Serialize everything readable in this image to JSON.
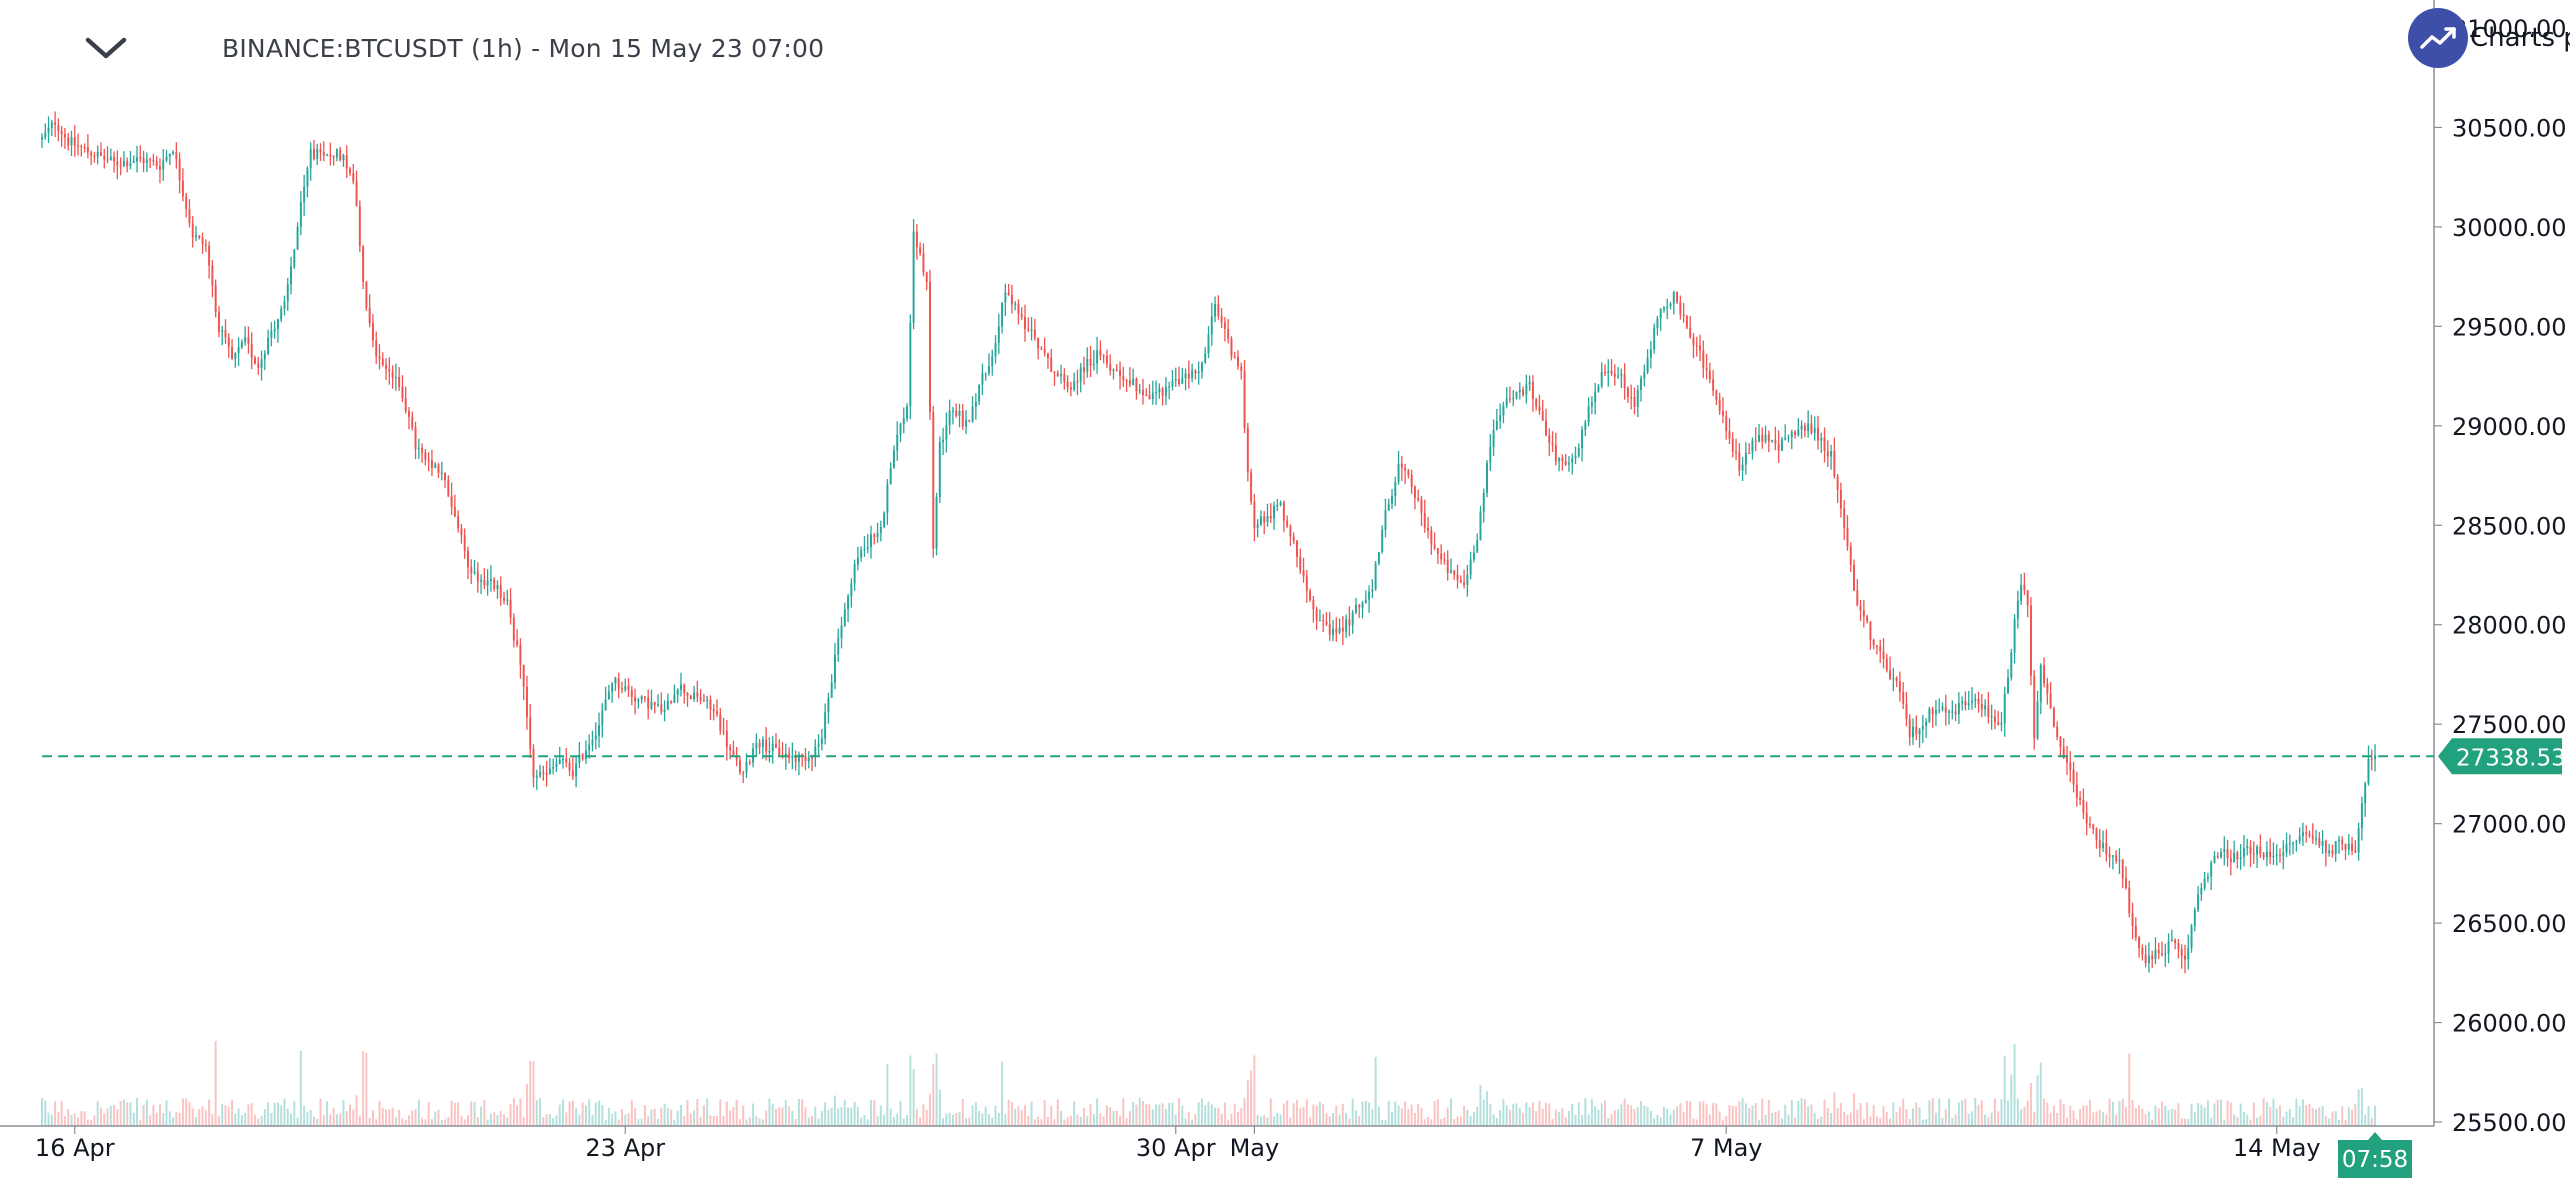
{
  "header": {
    "title": "BINANCE:BTCUSDT (1h) - Mon 15 May 23 07:00",
    "menu_icon": "chevron-down-icon",
    "brand_text": "Charts p",
    "brand_icon": "trend-up-icon"
  },
  "colors": {
    "up": "#26a69a",
    "down": "#ef5350",
    "last_price": "#22a17e",
    "brand": "#3d4fa8"
  },
  "chart_data": {
    "type": "candlestick",
    "symbol": "BINANCE:BTCUSDT",
    "interval": "1h",
    "y_axis": {
      "ticks": [
        "31000.00",
        "30500.00",
        "30000.00",
        "29500.00",
        "29000.00",
        "28500.00",
        "28000.00",
        "27500.00",
        "27000.00",
        "26500.00",
        "26000.00",
        "25500.00"
      ],
      "tick_values": [
        31000,
        30500,
        30000,
        29500,
        29000,
        28500,
        28000,
        27500,
        27000,
        26500,
        26000,
        25500
      ],
      "range": [
        25480,
        31040
      ],
      "position": "right"
    },
    "x_axis": {
      "ticks": [
        "16 Apr",
        "23 Apr",
        "30 Apr",
        "May",
        "7 May",
        "14 May"
      ],
      "tick_hours": [
        20,
        188,
        356,
        380,
        524,
        692
      ],
      "range_hours": [
        10,
        740
      ]
    },
    "last_price": {
      "value": 27338.53,
      "label": "27338.53"
    },
    "time_badge": "07:58",
    "price_path": [
      [
        10,
        30440
      ],
      [
        14,
        30530
      ],
      [
        18,
        30430
      ],
      [
        24,
        30380
      ],
      [
        32,
        30320
      ],
      [
        40,
        30340
      ],
      [
        46,
        30310
      ],
      [
        50,
        30400
      ],
      [
        52,
        30250
      ],
      [
        56,
        29960
      ],
      [
        60,
        29900
      ],
      [
        64,
        29500
      ],
      [
        68,
        29330
      ],
      [
        72,
        29420
      ],
      [
        76,
        29300
      ],
      [
        80,
        29480
      ],
      [
        84,
        29600
      ],
      [
        88,
        30000
      ],
      [
        92,
        30380
      ],
      [
        96,
        30340
      ],
      [
        100,
        30380
      ],
      [
        104,
        30300
      ],
      [
        106,
        30120
      ],
      [
        108,
        29700
      ],
      [
        112,
        29350
      ],
      [
        116,
        29280
      ],
      [
        120,
        29160
      ],
      [
        124,
        28900
      ],
      [
        128,
        28800
      ],
      [
        132,
        28760
      ],
      [
        136,
        28550
      ],
      [
        140,
        28300
      ],
      [
        144,
        28220
      ],
      [
        148,
        28200
      ],
      [
        152,
        28100
      ],
      [
        156,
        27800
      ],
      [
        160,
        27250
      ],
      [
        164,
        27240
      ],
      [
        168,
        27320
      ],
      [
        172,
        27260
      ],
      [
        176,
        27380
      ],
      [
        180,
        27500
      ],
      [
        184,
        27720
      ],
      [
        188,
        27680
      ],
      [
        192,
        27620
      ],
      [
        196,
        27600
      ],
      [
        200,
        27560
      ],
      [
        204,
        27700
      ],
      [
        208,
        27640
      ],
      [
        212,
        27620
      ],
      [
        216,
        27540
      ],
      [
        220,
        27360
      ],
      [
        224,
        27240
      ],
      [
        228,
        27420
      ],
      [
        232,
        27380
      ],
      [
        236,
        27350
      ],
      [
        240,
        27330
      ],
      [
        244,
        27340
      ],
      [
        248,
        27420
      ],
      [
        250,
        27650
      ],
      [
        254,
        28000
      ],
      [
        258,
        28300
      ],
      [
        262,
        28420
      ],
      [
        266,
        28470
      ],
      [
        270,
        28900
      ],
      [
        274,
        29100
      ],
      [
        276,
        29950
      ],
      [
        278,
        29850
      ],
      [
        280,
        29700
      ],
      [
        282,
        28400
      ],
      [
        284,
        28900
      ],
      [
        288,
        29100
      ],
      [
        292,
        29000
      ],
      [
        296,
        29200
      ],
      [
        300,
        29350
      ],
      [
        304,
        29700
      ],
      [
        308,
        29550
      ],
      [
        312,
        29480
      ],
      [
        316,
        29350
      ],
      [
        320,
        29250
      ],
      [
        324,
        29200
      ],
      [
        328,
        29300
      ],
      [
        332,
        29350
      ],
      [
        336,
        29300
      ],
      [
        340,
        29250
      ],
      [
        344,
        29200
      ],
      [
        348,
        29150
      ],
      [
        352,
        29180
      ],
      [
        356,
        29220
      ],
      [
        360,
        29250
      ],
      [
        364,
        29300
      ],
      [
        368,
        29600
      ],
      [
        372,
        29420
      ],
      [
        376,
        29250
      ],
      [
        378,
        28750
      ],
      [
        380,
        28500
      ],
      [
        384,
        28550
      ],
      [
        388,
        28600
      ],
      [
        392,
        28400
      ],
      [
        396,
        28200
      ],
      [
        400,
        28000
      ],
      [
        404,
        27950
      ],
      [
        408,
        28000
      ],
      [
        412,
        28100
      ],
      [
        416,
        28200
      ],
      [
        420,
        28550
      ],
      [
        424,
        28800
      ],
      [
        428,
        28700
      ],
      [
        432,
        28500
      ],
      [
        436,
        28350
      ],
      [
        440,
        28250
      ],
      [
        444,
        28200
      ],
      [
        448,
        28450
      ],
      [
        452,
        28900
      ],
      [
        456,
        29100
      ],
      [
        460,
        29150
      ],
      [
        464,
        29200
      ],
      [
        468,
        29000
      ],
      [
        472,
        28850
      ],
      [
        476,
        28800
      ],
      [
        480,
        28950
      ],
      [
        484,
        29200
      ],
      [
        488,
        29300
      ],
      [
        492,
        29250
      ],
      [
        496,
        29100
      ],
      [
        500,
        29350
      ],
      [
        504,
        29600
      ],
      [
        508,
        29650
      ],
      [
        512,
        29480
      ],
      [
        516,
        29350
      ],
      [
        520,
        29200
      ],
      [
        524,
        29000
      ],
      [
        528,
        28800
      ],
      [
        532,
        28900
      ],
      [
        536,
        28950
      ],
      [
        540,
        28900
      ],
      [
        544,
        28950
      ],
      [
        548,
        29000
      ],
      [
        552,
        28950
      ],
      [
        556,
        28850
      ],
      [
        560,
        28500
      ],
      [
        564,
        28100
      ],
      [
        568,
        27950
      ],
      [
        572,
        27800
      ],
      [
        576,
        27700
      ],
      [
        580,
        27450
      ],
      [
        584,
        27500
      ],
      [
        588,
        27600
      ],
      [
        592,
        27550
      ],
      [
        596,
        27600
      ],
      [
        600,
        27650
      ],
      [
        604,
        27550
      ],
      [
        608,
        27500
      ],
      [
        612,
        28000
      ],
      [
        614,
        28200
      ],
      [
        616,
        28100
      ],
      [
        618,
        27400
      ],
      [
        620,
        27800
      ],
      [
        624,
        27500
      ],
      [
        628,
        27300
      ],
      [
        632,
        27100
      ],
      [
        636,
        26950
      ],
      [
        640,
        26850
      ],
      [
        644,
        26800
      ],
      [
        648,
        26500
      ],
      [
        652,
        26300
      ],
      [
        656,
        26350
      ],
      [
        660,
        26400
      ],
      [
        664,
        26300
      ],
      [
        668,
        26650
      ],
      [
        672,
        26800
      ],
      [
        676,
        26850
      ],
      [
        680,
        26820
      ],
      [
        684,
        26880
      ],
      [
        688,
        26830
      ],
      [
        692,
        26860
      ],
      [
        696,
        26880
      ],
      [
        700,
        26950
      ],
      [
        704,
        26920
      ],
      [
        708,
        26870
      ],
      [
        712,
        26900
      ],
      [
        716,
        26880
      ],
      [
        718,
        27100
      ],
      [
        720,
        27320
      ],
      [
        722,
        27338
      ]
    ]
  }
}
